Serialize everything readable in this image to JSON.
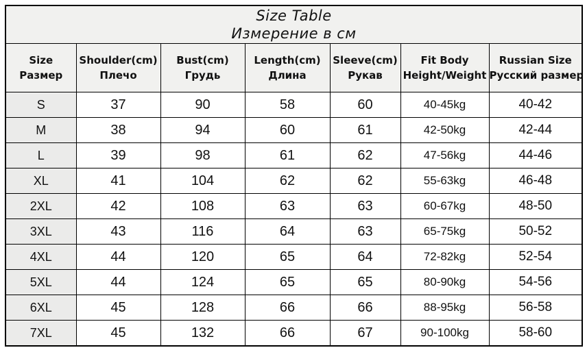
{
  "colors": {
    "border": "#000000",
    "title_band_bg": "#f1f1ef",
    "header_bg": "#f1f1ef",
    "size_column_bg": "#ebebea",
    "cell_bg": "#ffffff",
    "text": "#111111"
  },
  "chart_data": {
    "type": "table",
    "title": "Size Table",
    "subtitle": "Измерение в см",
    "columns": [
      {
        "line1": "Size",
        "line2": "Размер"
      },
      {
        "line1": "Shoulder(cm)",
        "line2": "Плечо"
      },
      {
        "line1": "Bust(cm)",
        "line2": "Грудь"
      },
      {
        "line1": "Length(cm)",
        "line2": "Длина"
      },
      {
        "line1": "Sleeve(cm)",
        "line2": "Рукав"
      },
      {
        "line1": "Fit Body",
        "line2": "Height/Weight"
      },
      {
        "line1": "Russian Size",
        "line2": "Русский размер"
      }
    ],
    "rows": [
      [
        "S",
        "37",
        "90",
        "58",
        "60",
        "40-45kg",
        "40-42"
      ],
      [
        "M",
        "38",
        "94",
        "60",
        "61",
        "42-50kg",
        "42-44"
      ],
      [
        "L",
        "39",
        "98",
        "61",
        "62",
        "47-56kg",
        "44-46"
      ],
      [
        "XL",
        "41",
        "104",
        "62",
        "62",
        "55-63kg",
        "46-48"
      ],
      [
        "2XL",
        "42",
        "108",
        "63",
        "63",
        "60-67kg",
        "48-50"
      ],
      [
        "3XL",
        "43",
        "116",
        "64",
        "63",
        "65-75kg",
        "50-52"
      ],
      [
        "4XL",
        "44",
        "120",
        "65",
        "64",
        "72-82kg",
        "52-54"
      ],
      [
        "5XL",
        "44",
        "124",
        "65",
        "65",
        "80-90kg",
        "54-56"
      ],
      [
        "6XL",
        "45",
        "128",
        "66",
        "66",
        "88-95kg",
        "56-58"
      ],
      [
        "7XL",
        "45",
        "132",
        "66",
        "67",
        "90-100kg",
        "58-60"
      ]
    ]
  }
}
